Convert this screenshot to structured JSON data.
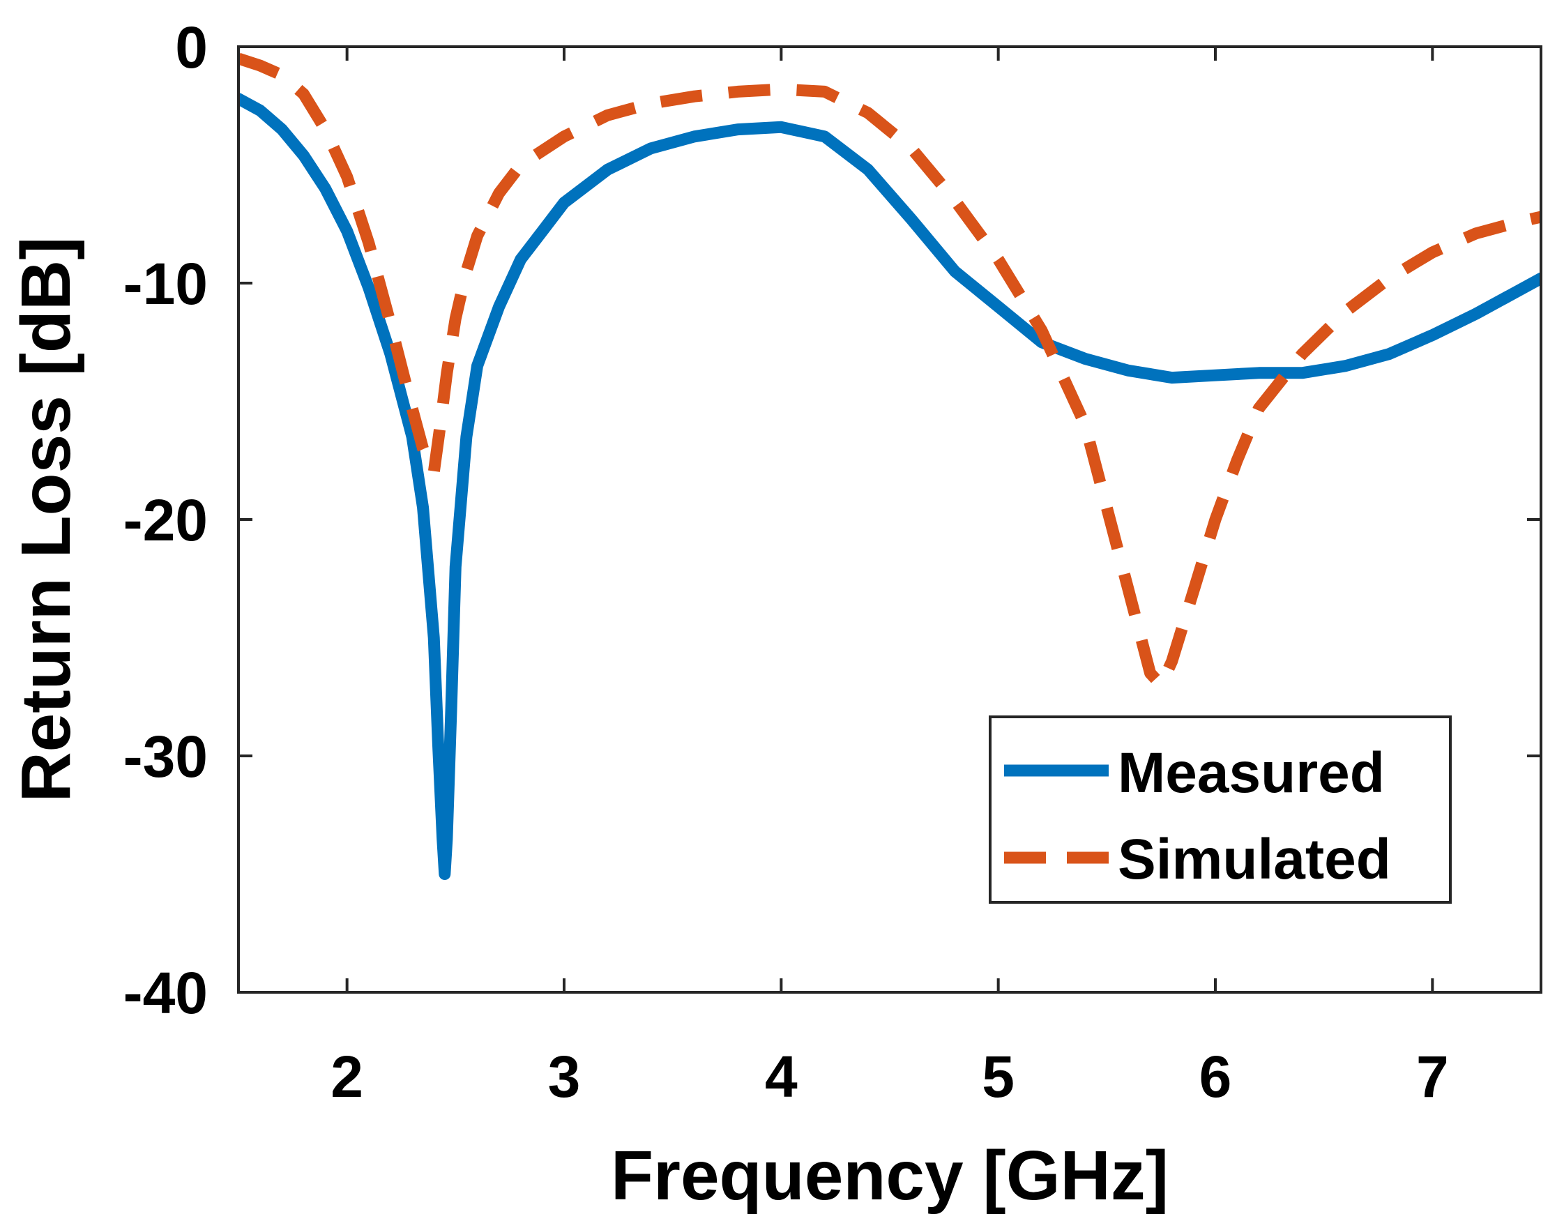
{
  "chart_data": {
    "type": "line",
    "title": "",
    "xlabel": "Frequency [GHz]",
    "ylabel": "Return Loss [dB]",
    "xlim": [
      1.5,
      7.5
    ],
    "ylim": [
      -40,
      0
    ],
    "xticks": [
      2,
      3,
      4,
      5,
      6,
      7
    ],
    "yticks": [
      0,
      -10,
      -20,
      -30,
      -40
    ],
    "xtick_labels": [
      "2",
      "3",
      "4",
      "5",
      "6",
      "7"
    ],
    "ytick_labels": [
      "0",
      "-10",
      "-20",
      "-30",
      "-40"
    ],
    "grid": false,
    "legend_position": "lower-right",
    "series": [
      {
        "name": "Measured",
        "style": "solid",
        "color": "#0072BD",
        "x": [
          1.5,
          1.6,
          1.7,
          1.8,
          1.9,
          2.0,
          2.1,
          2.2,
          2.3,
          2.35,
          2.4,
          2.42,
          2.44,
          2.45,
          2.46,
          2.48,
          2.5,
          2.55,
          2.6,
          2.7,
          2.8,
          2.9,
          3.0,
          3.2,
          3.4,
          3.6,
          3.8,
          4.0,
          4.2,
          4.4,
          4.6,
          4.8,
          5.0,
          5.2,
          5.4,
          5.6,
          5.8,
          6.0,
          6.2,
          6.4,
          6.6,
          6.8,
          7.0,
          7.2,
          7.4,
          7.5
        ],
        "values": [
          -2.2,
          -2.7,
          -3.5,
          -4.6,
          -6.0,
          -7.8,
          -10.2,
          -13.0,
          -16.5,
          -19.5,
          -25.0,
          -29.5,
          -33.5,
          -35.0,
          -33.5,
          -28.0,
          -22.0,
          -16.5,
          -13.5,
          -11.0,
          -9.0,
          -7.8,
          -6.6,
          -5.2,
          -4.3,
          -3.8,
          -3.5,
          -3.4,
          -3.8,
          -5.2,
          -7.3,
          -9.5,
          -11.0,
          -12.5,
          -13.2,
          -13.7,
          -14.0,
          -13.9,
          -13.8,
          -13.8,
          -13.5,
          -13.0,
          -12.2,
          -11.3,
          -10.3,
          -9.8
        ]
      },
      {
        "name": "Simulated",
        "style": "dashed",
        "color": "#D95319",
        "x": [
          1.5,
          1.6,
          1.7,
          1.8,
          1.9,
          2.0,
          2.1,
          2.2,
          2.3,
          2.35,
          2.4,
          2.43,
          2.46,
          2.5,
          2.55,
          2.6,
          2.7,
          2.8,
          3.0,
          3.2,
          3.4,
          3.6,
          3.8,
          4.0,
          4.2,
          4.4,
          4.6,
          4.8,
          5.0,
          5.2,
          5.4,
          5.5,
          5.6,
          5.7,
          5.75,
          5.8,
          5.9,
          6.0,
          6.1,
          6.2,
          6.4,
          6.6,
          6.8,
          7.0,
          7.2,
          7.4,
          7.5
        ],
        "values": [
          -0.5,
          -0.8,
          -1.2,
          -2.0,
          -3.5,
          -5.5,
          -8.3,
          -11.7,
          -15.3,
          -17.0,
          -18.0,
          -16.0,
          -13.8,
          -11.5,
          -9.5,
          -8.0,
          -6.2,
          -5.0,
          -3.8,
          -2.9,
          -2.4,
          -2.1,
          -1.9,
          -1.8,
          -1.9,
          -2.8,
          -4.3,
          -6.5,
          -9.0,
          -12.0,
          -16.0,
          -19.5,
          -23.0,
          -26.5,
          -27.0,
          -26.0,
          -23.0,
          -20.0,
          -17.5,
          -15.3,
          -13.0,
          -11.2,
          -9.8,
          -8.7,
          -7.9,
          -7.4,
          -7.2
        ]
      }
    ]
  }
}
